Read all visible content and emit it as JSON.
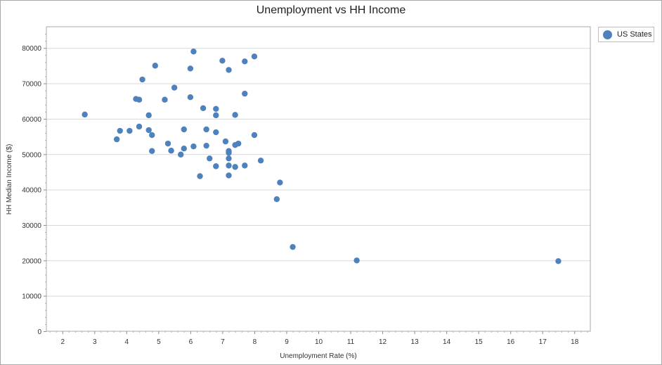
{
  "chart_data": {
    "type": "scatter",
    "title": "Unemployment vs HH Income",
    "xlabel": "Unemployment Rate (%)",
    "ylabel": "HH Median Income ($)",
    "xlim": [
      1.5,
      18.5
    ],
    "ylim": [
      0,
      86000
    ],
    "xticks": [
      2,
      3,
      4,
      5,
      6,
      7,
      8,
      9,
      10,
      11,
      12,
      13,
      14,
      15,
      16,
      17,
      18
    ],
    "yticks": [
      0,
      10000,
      20000,
      30000,
      40000,
      50000,
      60000,
      70000,
      80000
    ],
    "grid": "horizontal",
    "legend_position": "top-right",
    "series": [
      {
        "name": "US States",
        "color": "#4f81bd",
        "points": [
          [
            2.7,
            61200
          ],
          [
            3.7,
            54200
          ],
          [
            3.8,
            56600
          ],
          [
            4.1,
            56600
          ],
          [
            4.3,
            65600
          ],
          [
            4.4,
            65400
          ],
          [
            4.4,
            57800
          ],
          [
            4.5,
            71100
          ],
          [
            4.7,
            61000
          ],
          [
            4.7,
            56800
          ],
          [
            4.8,
            55400
          ],
          [
            4.8,
            50900
          ],
          [
            4.9,
            75000
          ],
          [
            5.2,
            65400
          ],
          [
            5.3,
            53000
          ],
          [
            5.4,
            51000
          ],
          [
            5.5,
            68800
          ],
          [
            5.7,
            49900
          ],
          [
            5.8,
            57000
          ],
          [
            5.8,
            51600
          ],
          [
            6.0,
            74200
          ],
          [
            6.0,
            66100
          ],
          [
            6.1,
            79000
          ],
          [
            6.1,
            52200
          ],
          [
            6.3,
            43800
          ],
          [
            6.4,
            63000
          ],
          [
            6.5,
            57000
          ],
          [
            6.5,
            52400
          ],
          [
            6.6,
            48800
          ],
          [
            6.8,
            62800
          ],
          [
            6.8,
            61000
          ],
          [
            6.8,
            56200
          ],
          [
            6.8,
            46600
          ],
          [
            7.0,
            76400
          ],
          [
            7.1,
            53600
          ],
          [
            7.2,
            73800
          ],
          [
            7.2,
            50900
          ],
          [
            7.2,
            50400
          ],
          [
            7.2,
            48800
          ],
          [
            7.2,
            46800
          ],
          [
            7.2,
            44000
          ],
          [
            7.4,
            61100
          ],
          [
            7.4,
            52600
          ],
          [
            7.4,
            46400
          ],
          [
            7.5,
            53000
          ],
          [
            7.7,
            76200
          ],
          [
            7.7,
            67100
          ],
          [
            7.7,
            46800
          ],
          [
            8.0,
            77600
          ],
          [
            8.0,
            55400
          ],
          [
            8.2,
            48200
          ],
          [
            8.7,
            37300
          ],
          [
            8.8,
            42000
          ],
          [
            9.2,
            23800
          ],
          [
            11.2,
            20000
          ],
          [
            17.5,
            19800
          ]
        ]
      }
    ]
  }
}
